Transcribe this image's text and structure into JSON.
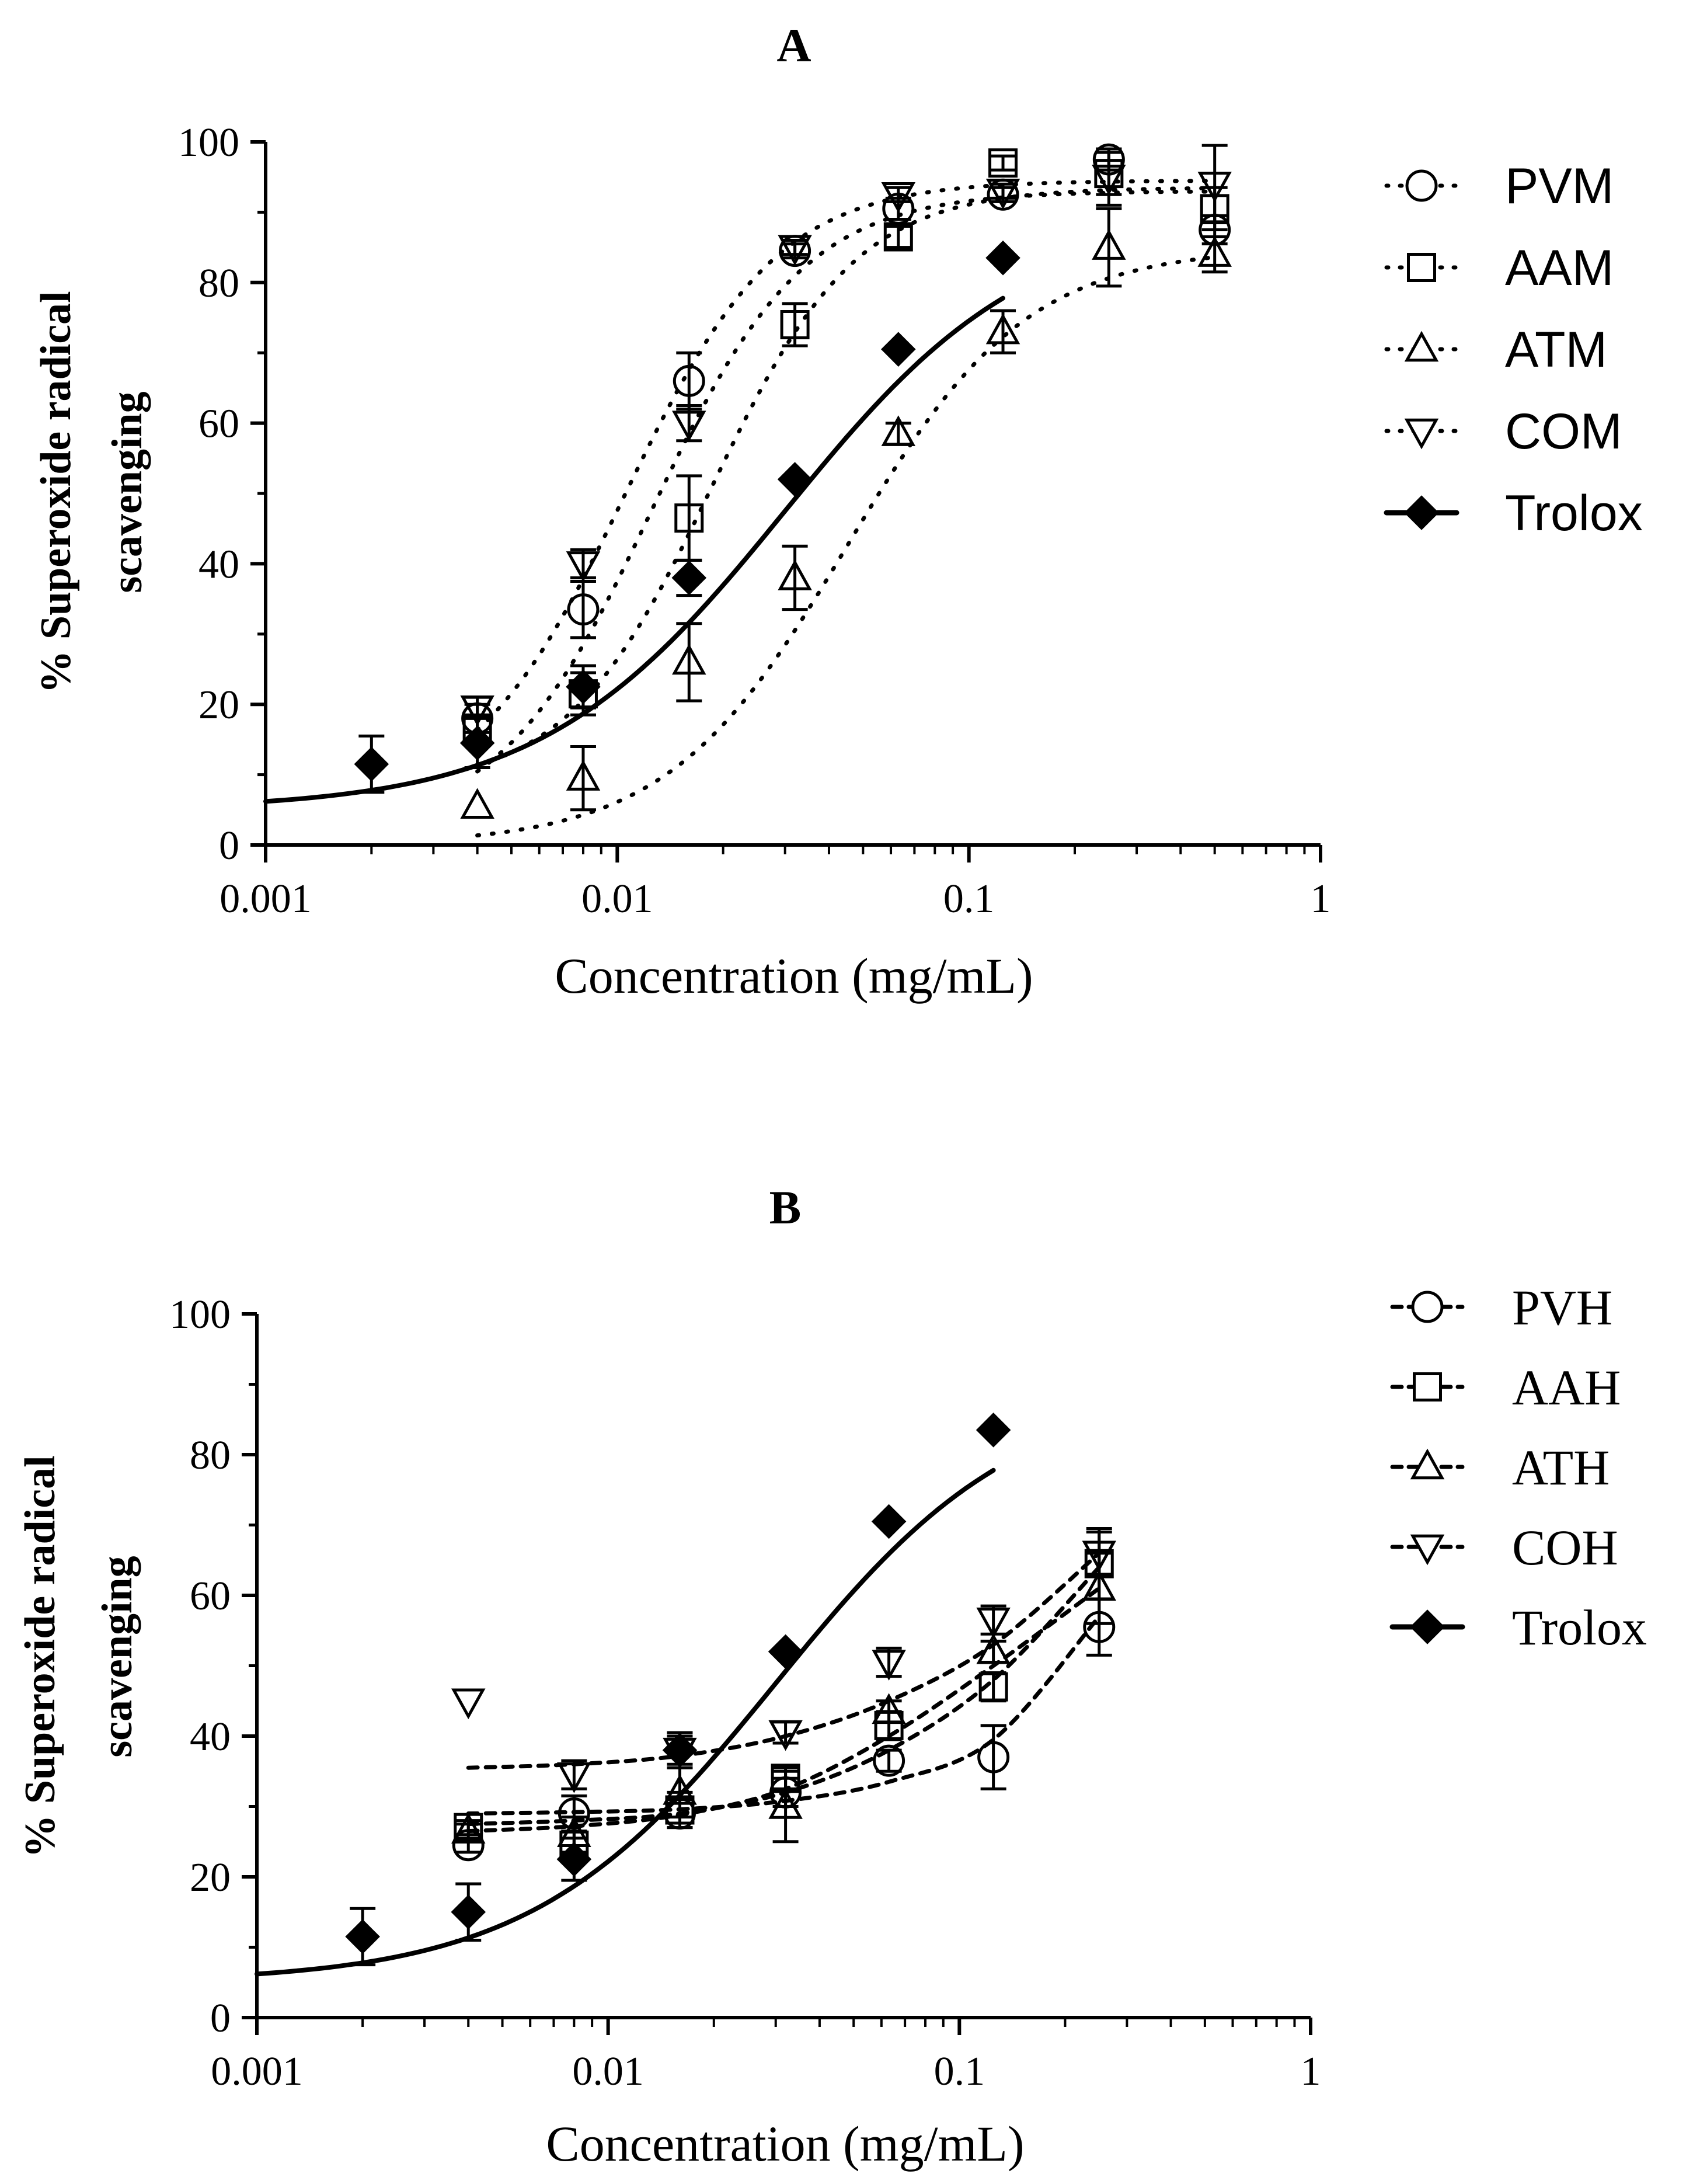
{
  "chart_data": [
    {
      "type": "line",
      "panel": "A",
      "xlabel": "Concentration (mg/mL)",
      "ylabel_lines": [
        "% Superoxide radical",
        "scavenging"
      ],
      "xscale": "log",
      "xlim": [
        0.001,
        1
      ],
      "ylim": [
        0,
        100
      ],
      "x_ticks": [
        "0.001",
        "0.01",
        "0.1",
        "1"
      ],
      "y_ticks": [
        "0",
        "20",
        "40",
        "60",
        "80",
        "100"
      ],
      "legend_position": "right",
      "series": [
        {
          "name": "PVM",
          "marker": "circle",
          "line": "dotted",
          "fill": "none",
          "points": [
            {
              "x": 0.004,
              "y": 18,
              "err": 2
            },
            {
              "x": 0.008,
              "y": 33.5,
              "err": 4
            },
            {
              "x": 0.016,
              "y": 66,
              "err": 4
            },
            {
              "x": 0.032,
              "y": 84.5,
              "err": 1
            },
            {
              "x": 0.063,
              "y": 90.5,
              "err": 1.5
            },
            {
              "x": 0.125,
              "y": 92.5,
              "err": 1
            },
            {
              "x": 0.25,
              "y": 97.5,
              "err": 1.5
            },
            {
              "x": 0.5,
              "y": 87.5,
              "err": 2
            }
          ],
          "fit": {
            "bottom": 2,
            "top": 93,
            "ec50": 0.0125,
            "hill": 2.0
          }
        },
        {
          "name": "AAM",
          "marker": "square",
          "line": "dotted",
          "fill": "none",
          "points": [
            {
              "x": 0.004,
              "y": 16.5,
              "err": 2
            },
            {
              "x": 0.008,
              "y": 21.5,
              "err": 3
            },
            {
              "x": 0.016,
              "y": 46.5,
              "err": 6
            },
            {
              "x": 0.032,
              "y": 74,
              "err": 3
            },
            {
              "x": 0.063,
              "y": 86.5,
              "err": 1.5
            },
            {
              "x": 0.125,
              "y": 97,
              "err": 1
            },
            {
              "x": 0.25,
              "y": 95.5,
              "err": 3
            },
            {
              "x": 0.5,
              "y": 90.5,
              "err": 3
            }
          ],
          "fit": {
            "bottom": 8,
            "top": 93.5,
            "ec50": 0.0185,
            "hill": 2.1
          }
        },
        {
          "name": "ATM",
          "marker": "triangle-up",
          "line": "dotted",
          "fill": "none",
          "points": [
            {
              "x": 0.004,
              "y": 5.5,
              "err": 0
            },
            {
              "x": 0.008,
              "y": 9.5,
              "err": 4.5
            },
            {
              "x": 0.016,
              "y": 26,
              "err": 5.5
            },
            {
              "x": 0.032,
              "y": 38,
              "err": 4.5
            },
            {
              "x": 0.063,
              "y": 58.5,
              "err": 1.5
            },
            {
              "x": 0.125,
              "y": 73,
              "err": 3
            },
            {
              "x": 0.25,
              "y": 85,
              "err": 5.5
            },
            {
              "x": 0.5,
              "y": 84,
              "err": 2.5
            }
          ],
          "fit": {
            "bottom": 0,
            "top": 85,
            "ec50": 0.045,
            "hill": 1.7
          }
        },
        {
          "name": "COM",
          "marker": "triangle-down",
          "line": "dotted",
          "fill": "none",
          "points": [
            {
              "x": 0.004,
              "y": 19.5,
              "err": 1.5
            },
            {
              "x": 0.008,
              "y": 40,
              "err": 2
            },
            {
              "x": 0.016,
              "y": 60,
              "err": 2.5
            },
            {
              "x": 0.032,
              "y": 85,
              "err": 1
            },
            {
              "x": 0.063,
              "y": 92.5,
              "err": 1
            },
            {
              "x": 0.125,
              "y": 93,
              "err": 1
            },
            {
              "x": 0.25,
              "y": 95,
              "err": 4
            },
            {
              "x": 0.5,
              "y": 94,
              "err": 5.5
            }
          ],
          "fit": {
            "bottom": 5,
            "top": 94.5,
            "ec50": 0.0105,
            "hill": 2.0
          }
        },
        {
          "name": "Trolox",
          "marker": "diamond",
          "line": "solid",
          "fill": "black",
          "points": [
            {
              "x": 0.002,
              "y": 11.5,
              "err": 4
            },
            {
              "x": 0.004,
              "y": 14.5,
              "err": 3.5
            },
            {
              "x": 0.008,
              "y": 22.5,
              "err": 3
            },
            {
              "x": 0.016,
              "y": 38,
              "err": 2.5
            },
            {
              "x": 0.032,
              "y": 52,
              "err": 0
            },
            {
              "x": 0.063,
              "y": 70.5,
              "err": 0
            },
            {
              "x": 0.125,
              "y": 83.5,
              "err": 0
            }
          ],
          "fit": {
            "bottom": 5,
            "top": 90,
            "ec50": 0.03,
            "hill": 1.25,
            "xmin": 0.001,
            "xmax": 0.125
          }
        }
      ]
    },
    {
      "type": "line",
      "panel": "B",
      "xlabel": "Concentration (mg/mL)",
      "ylabel_lines": [
        "% Superoxide radical",
        "scavenging"
      ],
      "xscale": "log",
      "xlim": [
        0.001,
        1
      ],
      "ylim": [
        0,
        100
      ],
      "x_ticks": [
        "0.001",
        "0.01",
        "0.1",
        "1"
      ],
      "y_ticks": [
        "0",
        "20",
        "40",
        "60",
        "80",
        "100"
      ],
      "legend_position": "right",
      "series": [
        {
          "name": "PVH",
          "marker": "circle",
          "line": "dashed",
          "fill": "none",
          "points": [
            {
              "x": 0.004,
              "y": 24.5,
              "err": 1
            },
            {
              "x": 0.008,
              "y": 29,
              "err": 2.5
            },
            {
              "x": 0.016,
              "y": 29,
              "err": 2
            },
            {
              "x": 0.032,
              "y": 32,
              "err": 2
            },
            {
              "x": 0.063,
              "y": 36.5,
              "err": 1.5
            },
            {
              "x": 0.125,
              "y": 37,
              "err": 4.5
            },
            {
              "x": 0.25,
              "y": 55.5,
              "err": 4
            }
          ],
          "curve": [
            [
              0.004,
              29
            ],
            [
              0.008,
              29.2
            ],
            [
              0.016,
              29.6
            ],
            [
              0.032,
              30.8
            ],
            [
              0.063,
              33.5
            ],
            [
              0.125,
              39.5
            ],
            [
              0.25,
              57
            ]
          ]
        },
        {
          "name": "AAH",
          "marker": "square",
          "line": "dashed",
          "fill": "none",
          "points": [
            {
              "x": 0.004,
              "y": 27,
              "err": 1
            },
            {
              "x": 0.008,
              "y": 24.5,
              "err": 2
            },
            {
              "x": 0.016,
              "y": 29.5,
              "err": 2.5
            },
            {
              "x": 0.032,
              "y": 34,
              "err": 1.5
            },
            {
              "x": 0.063,
              "y": 41.5,
              "err": 2
            },
            {
              "x": 0.125,
              "y": 47,
              "err": 2
            },
            {
              "x": 0.25,
              "y": 64.5,
              "err": 5
            }
          ],
          "curve": [
            [
              0.004,
              27.5
            ],
            [
              0.008,
              28
            ],
            [
              0.016,
              29
            ],
            [
              0.032,
              32
            ],
            [
              0.063,
              38
            ],
            [
              0.125,
              48
            ],
            [
              0.25,
              64
            ]
          ]
        },
        {
          "name": "ATH",
          "marker": "triangle-up",
          "line": "dashed",
          "fill": "none",
          "points": [
            {
              "x": 0.004,
              "y": 26.5,
              "err": 1
            },
            {
              "x": 0.008,
              "y": 26,
              "err": 2.5
            },
            {
              "x": 0.016,
              "y": 32,
              "err": 3.5
            },
            {
              "x": 0.032,
              "y": 30,
              "err": 5
            },
            {
              "x": 0.063,
              "y": 43.5,
              "err": 1.5
            },
            {
              "x": 0.125,
              "y": 52,
              "err": 1.5
            },
            {
              "x": 0.25,
              "y": 61,
              "err": 5
            }
          ],
          "curve": [
            [
              0.004,
              26.5
            ],
            [
              0.008,
              27.2
            ],
            [
              0.016,
              28.8
            ],
            [
              0.032,
              32.5
            ],
            [
              0.063,
              40
            ],
            [
              0.125,
              50
            ],
            [
              0.25,
              61
            ]
          ]
        },
        {
          "name": "COH",
          "marker": "triangle-down",
          "line": "dashed",
          "fill": "none",
          "points": [
            {
              "x": 0.004,
              "y": 45,
              "err": 0
            },
            {
              "x": 0.008,
              "y": 34.5,
              "err": 2
            },
            {
              "x": 0.016,
              "y": 38,
              "err": 2
            },
            {
              "x": 0.032,
              "y": 40.5,
              "err": 1.5
            },
            {
              "x": 0.063,
              "y": 50.5,
              "err": 2
            },
            {
              "x": 0.125,
              "y": 56.5,
              "err": 2
            },
            {
              "x": 0.25,
              "y": 66,
              "err": 3
            }
          ],
          "curve": [
            [
              0.004,
              35.5
            ],
            [
              0.008,
              36
            ],
            [
              0.016,
              37.2
            ],
            [
              0.032,
              40
            ],
            [
              0.063,
              45
            ],
            [
              0.125,
              53
            ],
            [
              0.25,
              66
            ]
          ]
        },
        {
          "name": "Trolox",
          "marker": "diamond",
          "line": "solid",
          "fill": "black",
          "points": [
            {
              "x": 0.002,
              "y": 11.5,
              "err": 4
            },
            {
              "x": 0.004,
              "y": 15,
              "err": 4
            },
            {
              "x": 0.008,
              "y": 22.5,
              "err": 3
            },
            {
              "x": 0.016,
              "y": 38,
              "err": 2.5
            },
            {
              "x": 0.032,
              "y": 52,
              "err": 0
            },
            {
              "x": 0.063,
              "y": 70.5,
              "err": 0
            },
            {
              "x": 0.125,
              "y": 83.5,
              "err": 0
            }
          ],
          "fit": {
            "bottom": 5,
            "top": 90,
            "ec50": 0.03,
            "hill": 1.25,
            "xmin": 0.001,
            "xmax": 0.125
          }
        }
      ]
    }
  ]
}
